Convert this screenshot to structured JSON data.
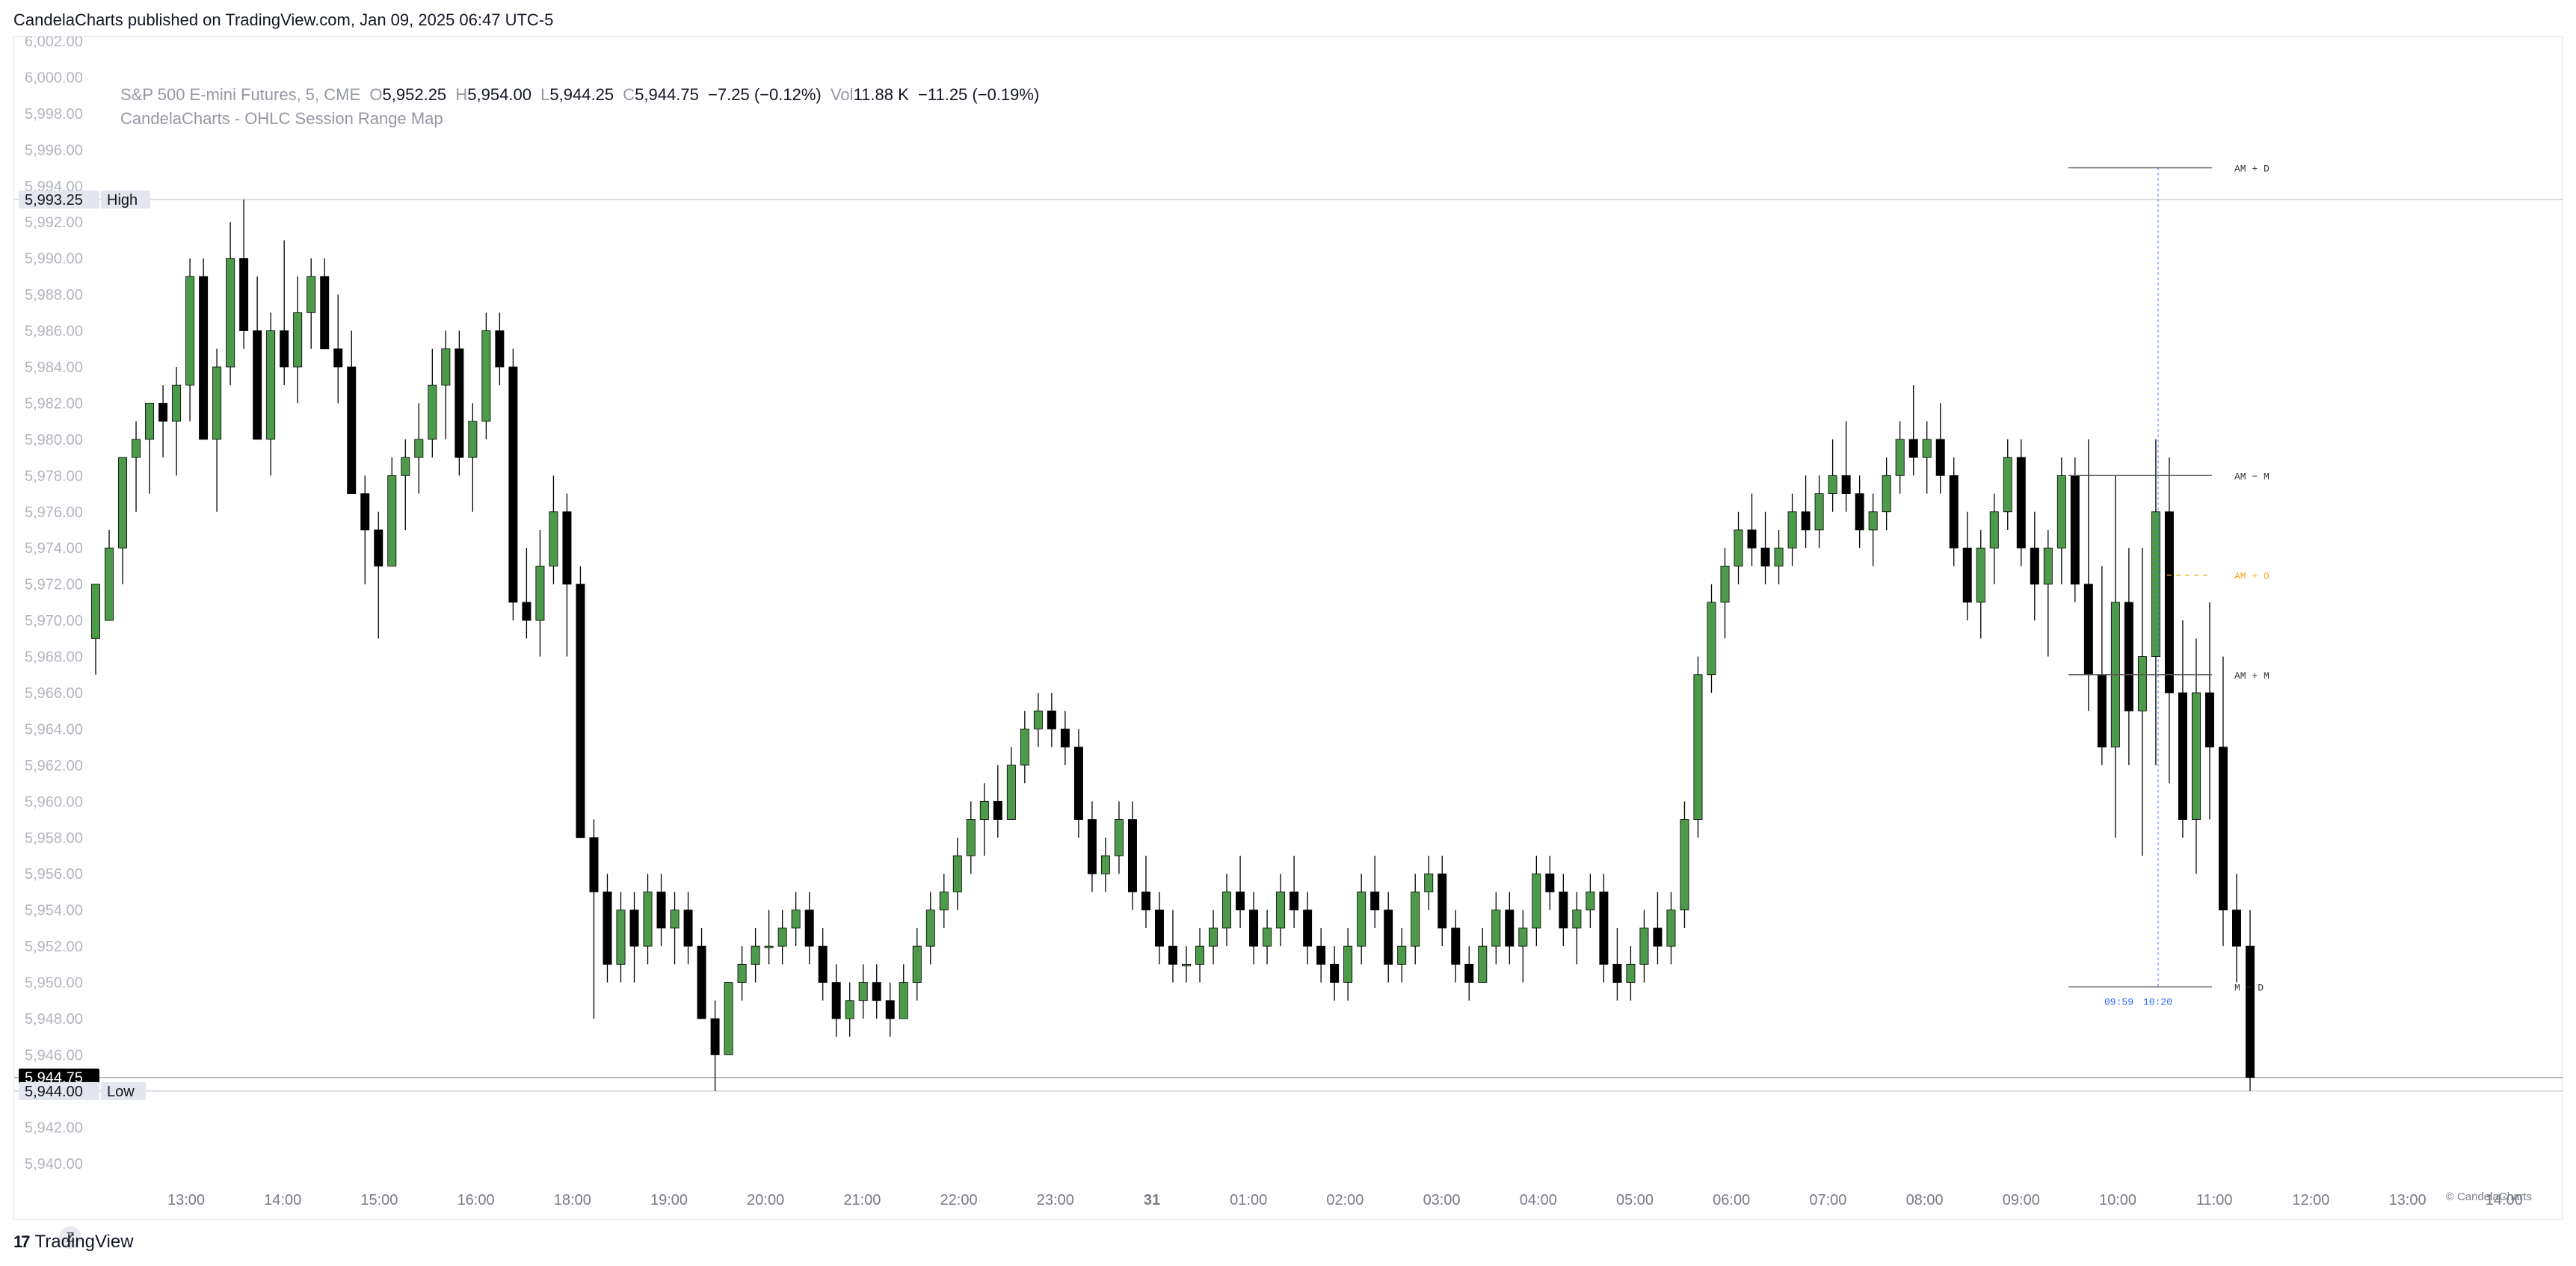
{
  "header": {
    "publish_line": "CandelaCharts published on TradingView.com, Jan 09, 2025 06:47 UTC-5"
  },
  "legend": {
    "symbol_line": "S&P 500 E-mini Futures, 5, CME",
    "open_label": "O",
    "open": "5,952.25",
    "high_label": "H",
    "high": "5,954.00",
    "low_label": "L",
    "low": "5,944.25",
    "close_label": "C",
    "close": "5,944.75",
    "change": "−7.25 (−0.12%)",
    "vol_label": "Vol",
    "vol": "11.88 K",
    "vol_change": "−11.25 (−0.19%)",
    "indicator": "CandelaCharts - OHLC Session Range Map"
  },
  "footer": {
    "brand": "TradingView",
    "copyright": "© CandelaCharts",
    "z_label": "Z"
  },
  "colors": {
    "up": "#4c9a4a",
    "down": "#000000",
    "grid_text": "#b2b5be",
    "accent": "#f5a623",
    "blue": "#2962ff"
  },
  "chart_data": {
    "type": "candlestick",
    "title": "S&P 500 E-mini Futures, 5, CME",
    "ylim": [
      5939,
      6002
    ],
    "y_ticks": [
      "6,002.00",
      "6,000.00",
      "5,998.00",
      "5,996.00",
      "5,994.00",
      "5,992.00",
      "5,990.00",
      "5,988.00",
      "5,986.00",
      "5,984.00",
      "5,982.00",
      "5,980.00",
      "5,978.00",
      "5,976.00",
      "5,974.00",
      "5,972.00",
      "5,970.00",
      "5,968.00",
      "5,966.00",
      "5,964.00",
      "5,962.00",
      "5,960.00",
      "5,958.00",
      "5,956.00",
      "5,954.00",
      "5,952.00",
      "5,950.00",
      "5,948.00",
      "5,946.00",
      "5,944.00",
      "5,942.00",
      "5,940.00"
    ],
    "x_ticks": [
      "13:00",
      "14:00",
      "15:00",
      "16:00",
      "18:00",
      "19:00",
      "20:00",
      "21:00",
      "22:00",
      "23:00",
      "31",
      "01:00",
      "02:00",
      "03:00",
      "04:00",
      "05:00",
      "06:00",
      "07:00",
      "08:00",
      "09:00",
      "10:00",
      "11:00",
      "12:00",
      "13:00",
      "14:00"
    ],
    "high_marker": {
      "value": "5,993.25",
      "label": "High"
    },
    "low_marker": {
      "value": "5,944.00",
      "label": "Low"
    },
    "last_price": "5,944.75",
    "session_levels": [
      {
        "label": "AM + D",
        "value": 5995.0
      },
      {
        "label": "AM − M",
        "value": 5978.0
      },
      {
        "label": "AM + O",
        "value": 5972.5
      },
      {
        "label": "AM + M",
        "value": 5967.0
      },
      {
        "label": "M − D",
        "value": 5949.75
      }
    ],
    "session_times": [
      "09:59",
      "10:20"
    ],
    "candles": [
      [
        5969,
        5972,
        5967,
        5972
      ],
      [
        5970,
        5975,
        5970,
        5974
      ],
      [
        5974,
        5979,
        5972,
        5979
      ],
      [
        5979,
        5981,
        5976,
        5980
      ],
      [
        5980,
        5982,
        5977,
        5982
      ],
      [
        5982,
        5983,
        5979,
        5981
      ],
      [
        5981,
        5984,
        5978,
        5983
      ],
      [
        5983,
        5990,
        5981,
        5989
      ],
      [
        5989,
        5990,
        5980,
        5980
      ],
      [
        5980,
        5985,
        5976,
        5984
      ],
      [
        5984,
        5992,
        5983,
        5990
      ],
      [
        5990,
        5993.25,
        5985,
        5986
      ],
      [
        5986,
        5989,
        5980,
        5980
      ],
      [
        5980,
        5987,
        5978,
        5986
      ],
      [
        5986,
        5991,
        5983,
        5984
      ],
      [
        5984,
        5989,
        5982,
        5987
      ],
      [
        5987,
        5990,
        5985,
        5989
      ],
      [
        5989,
        5990,
        5985,
        5985
      ],
      [
        5985,
        5988,
        5982,
        5984
      ],
      [
        5984,
        5986,
        5977,
        5977
      ],
      [
        5977,
        5978,
        5972,
        5975
      ],
      [
        5975,
        5976,
        5969,
        5973
      ],
      [
        5973,
        5979,
        5973,
        5978
      ],
      [
        5978,
        5980,
        5975,
        5979
      ],
      [
        5979,
        5982,
        5977,
        5980
      ],
      [
        5980,
        5985,
        5979,
        5983
      ],
      [
        5983,
        5986,
        5980,
        5985
      ],
      [
        5985,
        5986,
        5978,
        5979
      ],
      [
        5979,
        5982,
        5976,
        5981
      ],
      [
        5981,
        5987,
        5980,
        5986
      ],
      [
        5986,
        5987,
        5983,
        5984
      ],
      [
        5984,
        5985,
        5970,
        5971
      ],
      [
        5971,
        5974,
        5969,
        5970
      ],
      [
        5970,
        5975,
        5968,
        5973
      ],
      [
        5973,
        5978,
        5972,
        5976
      ],
      [
        5976,
        5977,
        5968,
        5972
      ],
      [
        5972,
        5973,
        5958,
        5958
      ],
      [
        5958,
        5959,
        5948,
        5955
      ],
      [
        5955,
        5956,
        5950,
        5951
      ],
      [
        5951,
        5955,
        5950,
        5954
      ],
      [
        5954,
        5955,
        5950,
        5952
      ],
      [
        5952,
        5956,
        5951,
        5955
      ],
      [
        5955,
        5956,
        5952,
        5953
      ],
      [
        5953,
        5955,
        5951,
        5954
      ],
      [
        5954,
        5955,
        5951,
        5952
      ],
      [
        5952,
        5953,
        5948,
        5948
      ],
      [
        5948,
        5949,
        5944,
        5946
      ],
      [
        5946,
        5950,
        5946,
        5950
      ],
      [
        5950,
        5952,
        5949,
        5951
      ],
      [
        5951,
        5953,
        5950,
        5952
      ],
      [
        5952,
        5954,
        5951,
        5952
      ],
      [
        5952,
        5954,
        5951,
        5953
      ],
      [
        5953,
        5955,
        5952,
        5954
      ],
      [
        5954,
        5955,
        5951,
        5952
      ],
      [
        5952,
        5953,
        5949,
        5950
      ],
      [
        5950,
        5951,
        5947,
        5948
      ],
      [
        5948,
        5950,
        5947,
        5949
      ],
      [
        5949,
        5951,
        5948,
        5950
      ],
      [
        5950,
        5951,
        5948,
        5949
      ],
      [
        5949,
        5950,
        5947,
        5948
      ],
      [
        5948,
        5951,
        5948,
        5950
      ],
      [
        5950,
        5953,
        5949,
        5952
      ],
      [
        5952,
        5955,
        5951,
        5954
      ],
      [
        5954,
        5956,
        5953,
        5955
      ],
      [
        5955,
        5958,
        5954,
        5957
      ],
      [
        5957,
        5960,
        5956,
        5959
      ],
      [
        5959,
        5961,
        5957,
        5960
      ],
      [
        5960,
        5962,
        5958,
        5959
      ],
      [
        5959,
        5963,
        5959,
        5962
      ],
      [
        5962,
        5965,
        5961,
        5964
      ],
      [
        5964,
        5966,
        5963,
        5965
      ],
      [
        5965,
        5966,
        5963,
        5964
      ],
      [
        5964,
        5965,
        5962,
        5963
      ],
      [
        5963,
        5964,
        5958,
        5959
      ],
      [
        5959,
        5960,
        5955,
        5956
      ],
      [
        5956,
        5958,
        5955,
        5957
      ],
      [
        5957,
        5960,
        5956,
        5959
      ],
      [
        5959,
        5960,
        5954,
        5955
      ],
      [
        5955,
        5957,
        5953,
        5954
      ],
      [
        5954,
        5955,
        5951,
        5952
      ],
      [
        5952,
        5954,
        5950,
        5951
      ],
      [
        5951,
        5952,
        5950,
        5951
      ],
      [
        5951,
        5953,
        5950,
        5952
      ],
      [
        5952,
        5954,
        5951,
        5953
      ],
      [
        5953,
        5956,
        5952,
        5955
      ],
      [
        5955,
        5957,
        5953,
        5954
      ],
      [
        5954,
        5955,
        5951,
        5952
      ],
      [
        5952,
        5954,
        5951,
        5953
      ],
      [
        5953,
        5956,
        5952,
        5955
      ],
      [
        5955,
        5957,
        5953,
        5954
      ],
      [
        5954,
        5955,
        5951,
        5952
      ],
      [
        5952,
        5953,
        5950,
        5951
      ],
      [
        5951,
        5952,
        5949,
        5950
      ],
      [
        5950,
        5953,
        5949,
        5952
      ],
      [
        5952,
        5956,
        5951,
        5955
      ],
      [
        5955,
        5957,
        5953,
        5954
      ],
      [
        5954,
        5955,
        5950,
        5951
      ],
      [
        5951,
        5953,
        5950,
        5952
      ],
      [
        5952,
        5956,
        5951,
        5955
      ],
      [
        5955,
        5957,
        5954,
        5956
      ],
      [
        5956,
        5957,
        5952,
        5953
      ],
      [
        5953,
        5954,
        5950,
        5951
      ],
      [
        5951,
        5952,
        5949,
        5950
      ],
      [
        5950,
        5953,
        5950,
        5952
      ],
      [
        5952,
        5955,
        5951,
        5954
      ],
      [
        5954,
        5955,
        5951,
        5952
      ],
      [
        5952,
        5954,
        5950,
        5953
      ],
      [
        5953,
        5957,
        5952,
        5956
      ],
      [
        5956,
        5957,
        5954,
        5955
      ],
      [
        5955,
        5956,
        5952,
        5953
      ],
      [
        5953,
        5955,
        5951,
        5954
      ],
      [
        5954,
        5956,
        5953,
        5955
      ],
      [
        5955,
        5956,
        5950,
        5951
      ],
      [
        5951,
        5953,
        5949,
        5950
      ],
      [
        5950,
        5952,
        5949,
        5951
      ],
      [
        5951,
        5954,
        5950,
        5953
      ],
      [
        5953,
        5955,
        5951,
        5952
      ],
      [
        5952,
        5955,
        5951,
        5954
      ],
      [
        5954,
        5960,
        5953,
        5959
      ],
      [
        5959,
        5968,
        5958,
        5967
      ],
      [
        5967,
        5972,
        5966,
        5971
      ],
      [
        5971,
        5974,
        5969,
        5973
      ],
      [
        5973,
        5976,
        5972,
        5975
      ],
      [
        5975,
        5977,
        5973,
        5974
      ],
      [
        5974,
        5976,
        5972,
        5973
      ],
      [
        5973,
        5975,
        5972,
        5974
      ],
      [
        5974,
        5977,
        5973,
        5976
      ],
      [
        5976,
        5978,
        5974,
        5975
      ],
      [
        5975,
        5978,
        5974,
        5977
      ],
      [
        5977,
        5980,
        5976,
        5978
      ],
      [
        5978,
        5981,
        5976,
        5977
      ],
      [
        5977,
        5978,
        5974,
        5975
      ],
      [
        5975,
        5977,
        5973,
        5976
      ],
      [
        5976,
        5979,
        5975,
        5978
      ],
      [
        5978,
        5981,
        5977,
        5980
      ],
      [
        5980,
        5983,
        5978,
        5979
      ],
      [
        5979,
        5981,
        5977,
        5980
      ],
      [
        5980,
        5982,
        5977,
        5978
      ],
      [
        5978,
        5979,
        5973,
        5974
      ],
      [
        5974,
        5976,
        5970,
        5971
      ],
      [
        5971,
        5975,
        5969,
        5974
      ],
      [
        5974,
        5977,
        5972,
        5976
      ],
      [
        5976,
        5980,
        5975,
        5979
      ],
      [
        5979,
        5980,
        5973,
        5974
      ],
      [
        5974,
        5976,
        5970,
        5972
      ],
      [
        5972,
        5975,
        5968,
        5974
      ],
      [
        5974,
        5979,
        5972,
        5978
      ],
      [
        5978,
        5979,
        5971,
        5972
      ],
      [
        5972,
        5980,
        5965,
        5967
      ],
      [
        5967,
        5973,
        5962,
        5963
      ],
      [
        5963,
        5978,
        5958,
        5971
      ],
      [
        5971,
        5974,
        5962,
        5965
      ],
      [
        5965,
        5974,
        5957,
        5968
      ],
      [
        5968,
        5980,
        5962,
        5976
      ],
      [
        5976,
        5979,
        5961,
        5966
      ],
      [
        5966,
        5970,
        5958,
        5959
      ],
      [
        5959,
        5969,
        5956,
        5966
      ],
      [
        5966,
        5971,
        5959,
        5963
      ],
      [
        5963,
        5968,
        5952,
        5954
      ],
      [
        5954,
        5956,
        5950,
        5952
      ],
      [
        5952,
        5954,
        5944,
        5944.75
      ]
    ]
  }
}
